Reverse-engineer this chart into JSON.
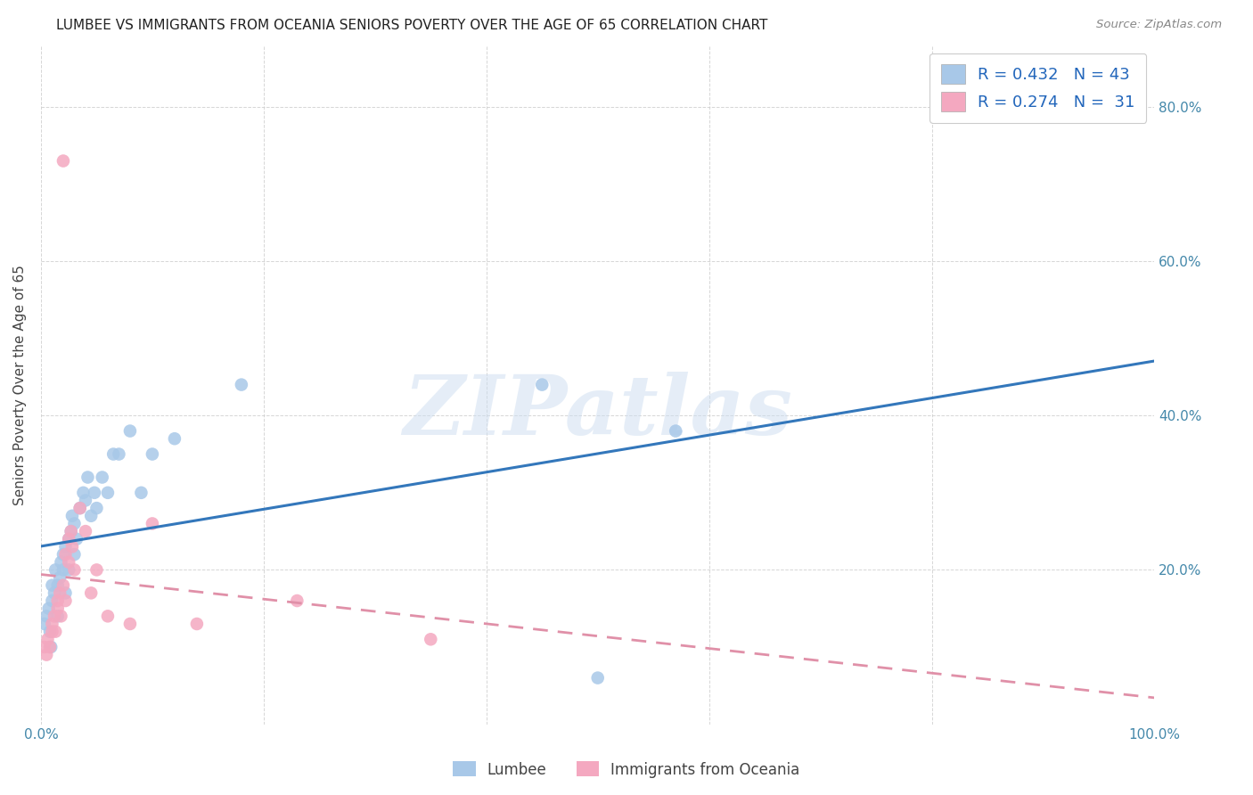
{
  "title": "LUMBEE VS IMMIGRANTS FROM OCEANIA SENIORS POVERTY OVER THE AGE OF 65 CORRELATION CHART",
  "source": "Source: ZipAtlas.com",
  "ylabel": "Seniors Poverty Over the Age of 65",
  "watermark": "ZIPatlas",
  "lumbee_R": 0.432,
  "lumbee_N": 43,
  "oceania_R": 0.274,
  "oceania_N": 31,
  "lumbee_color": "#a8c8e8",
  "oceania_color": "#f4a8c0",
  "lumbee_line_color": "#3377bb",
  "oceania_line_color": "#e090a8",
  "xlim": [
    0,
    1.0
  ],
  "ylim": [
    0,
    0.88
  ],
  "xticks": [
    0.0,
    0.2,
    0.4,
    0.6,
    0.8,
    1.0
  ],
  "xticklabels": [
    "0.0%",
    "",
    "",
    "",
    "",
    "100.0%"
  ],
  "yticks": [
    0.0,
    0.2,
    0.4,
    0.6,
    0.8
  ],
  "yticklabels_right": [
    "",
    "20.0%",
    "40.0%",
    "60.0%",
    "80.0%"
  ],
  "lumbee_x": [
    0.003,
    0.005,
    0.007,
    0.008,
    0.009,
    0.01,
    0.01,
    0.012,
    0.013,
    0.015,
    0.015,
    0.017,
    0.018,
    0.02,
    0.02,
    0.022,
    0.022,
    0.025,
    0.025,
    0.027,
    0.028,
    0.03,
    0.03,
    0.032,
    0.035,
    0.038,
    0.04,
    0.042,
    0.045,
    0.048,
    0.05,
    0.055,
    0.06,
    0.065,
    0.07,
    0.08,
    0.09,
    0.1,
    0.12,
    0.18,
    0.45,
    0.57,
    0.5
  ],
  "lumbee_y": [
    0.13,
    0.14,
    0.15,
    0.12,
    0.1,
    0.16,
    0.18,
    0.17,
    0.2,
    0.18,
    0.14,
    0.19,
    0.21,
    0.2,
    0.22,
    0.23,
    0.17,
    0.24,
    0.2,
    0.25,
    0.27,
    0.22,
    0.26,
    0.24,
    0.28,
    0.3,
    0.29,
    0.32,
    0.27,
    0.3,
    0.28,
    0.32,
    0.3,
    0.35,
    0.35,
    0.38,
    0.3,
    0.35,
    0.37,
    0.44,
    0.44,
    0.38,
    0.06
  ],
  "oceania_x": [
    0.003,
    0.005,
    0.006,
    0.008,
    0.01,
    0.01,
    0.012,
    0.013,
    0.015,
    0.015,
    0.017,
    0.018,
    0.02,
    0.022,
    0.022,
    0.025,
    0.025,
    0.027,
    0.028,
    0.03,
    0.02,
    0.035,
    0.04,
    0.045,
    0.05,
    0.06,
    0.08,
    0.1,
    0.14,
    0.23,
    0.35
  ],
  "oceania_y": [
    0.1,
    0.09,
    0.11,
    0.1,
    0.12,
    0.13,
    0.14,
    0.12,
    0.15,
    0.16,
    0.17,
    0.14,
    0.18,
    0.22,
    0.16,
    0.24,
    0.21,
    0.25,
    0.23,
    0.2,
    0.73,
    0.28,
    0.25,
    0.17,
    0.2,
    0.14,
    0.13,
    0.26,
    0.13,
    0.16,
    0.11
  ]
}
